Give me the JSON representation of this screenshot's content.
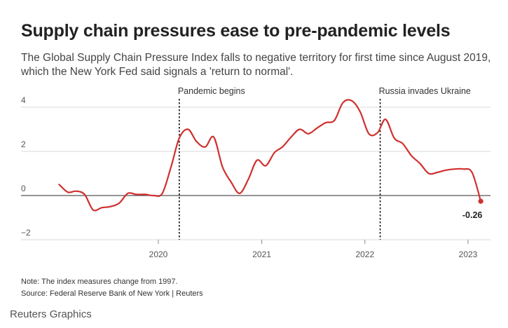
{
  "title": "Supply chain pressures ease to pre-pandemic levels",
  "subtitle": "The Global Supply Chain Pressure Index falls to negative territory for first time since August 2019, which the New York Fed said signals a 'return to normal'.",
  "note": "Note: The index measures change from 1997.",
  "source": "Source: Federal Reserve Bank of New York | Reuters",
  "brand": "Reuters Graphics",
  "colors": {
    "line": "#d0302e",
    "grid": "#d9d9d9",
    "zero_line": "#555555",
    "axis_text": "#555555",
    "annotation_line": "#111111"
  },
  "chart_data": {
    "type": "line",
    "x_axis": {
      "ticks": [
        "2020",
        "2021",
        "2022",
        "2023"
      ]
    },
    "y_axis": {
      "ticks": [
        "4",
        "2",
        "0",
        "−2"
      ],
      "range": [
        -2,
        4.4
      ]
    },
    "grid": true,
    "series": [
      {
        "x": [
          "2019-01",
          "2019-02",
          "2019-03",
          "2019-04",
          "2019-05",
          "2019-06",
          "2019-07",
          "2019-08",
          "2019-09",
          "2019-10",
          "2019-11",
          "2019-12",
          "2020-01",
          "2020-02",
          "2020-03",
          "2020-04",
          "2020-05",
          "2020-06",
          "2020-07",
          "2020-08",
          "2020-09",
          "2020-10",
          "2020-11",
          "2020-12",
          "2021-01",
          "2021-02",
          "2021-03",
          "2021-04",
          "2021-05",
          "2021-06",
          "2021-07",
          "2021-08",
          "2021-09",
          "2021-10",
          "2021-11",
          "2021-12",
          "2022-01",
          "2022-02",
          "2022-03",
          "2022-04",
          "2022-05",
          "2022-06",
          "2022-07",
          "2022-08",
          "2022-09",
          "2022-10",
          "2022-11",
          "2022-12",
          "2023-01",
          "2023-02"
        ],
        "values": [
          0.5,
          0.15,
          0.2,
          0.05,
          -0.65,
          -0.55,
          -0.5,
          -0.35,
          0.1,
          0.05,
          0.05,
          0.0,
          0.1,
          1.3,
          2.6,
          3.0,
          2.45,
          2.2,
          2.65,
          1.3,
          0.6,
          0.1,
          0.75,
          1.6,
          1.35,
          1.95,
          2.2,
          2.65,
          3.0,
          2.8,
          3.05,
          3.3,
          3.4,
          4.2,
          4.3,
          3.8,
          2.8,
          2.85,
          3.45,
          2.6,
          2.35,
          1.8,
          1.45,
          1.0,
          1.05,
          1.15,
          1.2,
          1.2,
          1.05,
          -0.26
        ]
      }
    ],
    "annotations": [
      {
        "label": "Pandemic begins",
        "x": "2020-03"
      },
      {
        "label": "Russia invades Ukraine",
        "x": "2022-02-24"
      }
    ],
    "end_label": "-0.26"
  }
}
